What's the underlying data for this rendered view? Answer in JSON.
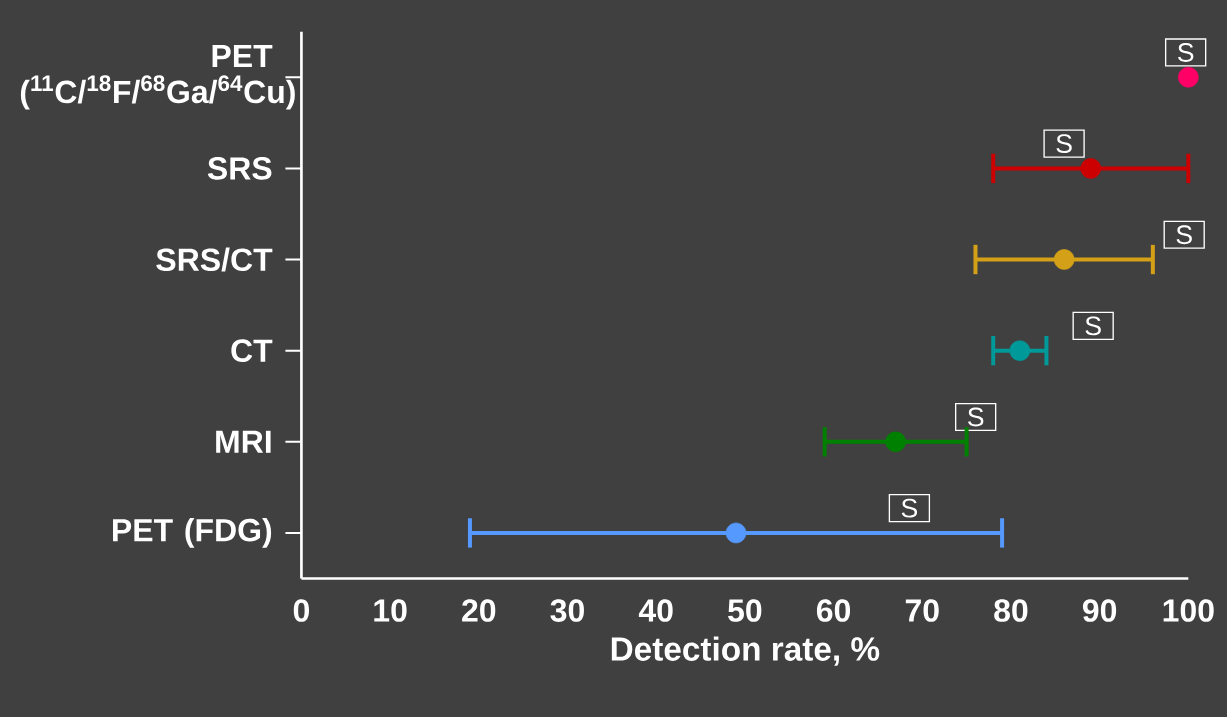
{
  "chart_data": {
    "type": "scatter",
    "orientation": "horizontal",
    "xlabel": "Detection rate, %",
    "categories": [
      "PET ($^{11}$C/$^{18}$F/$^{68}$Ga/$^{64}$Cu)",
      "SRS",
      "SRS/CT",
      "CT",
      "MRI",
      "PET (FDG)"
    ],
    "values": [
      100,
      89,
      86,
      81,
      67,
      49
    ],
    "errors": [
      null,
      [
        78,
        100
      ],
      [
        76,
        96
      ],
      [
        78,
        84
      ],
      [
        59,
        75
      ],
      [
        19,
        79
      ]
    ],
    "colors": [
      "#ff0066",
      "#cc0000",
      "#d4a017",
      "#009999",
      "#008000",
      "#5599ff"
    ],
    "xlim": [
      0,
      100
    ],
    "xticks": [
      0,
      10,
      20,
      30,
      40,
      50,
      60,
      70,
      80,
      90,
      100
    ],
    "grid": false,
    "annotations": [
      "S",
      "S",
      "S",
      "S",
      "S",
      "S"
    ]
  }
}
